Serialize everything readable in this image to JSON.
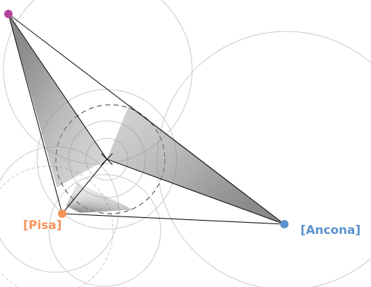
{
  "nodes": [
    {
      "label": "[Pisa]"
    },
    {
      "label": "[Ancona]"
    }
  ]
}
